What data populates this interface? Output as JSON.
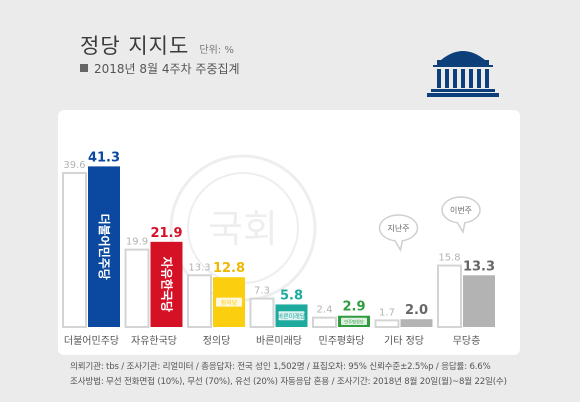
{
  "header": {
    "title": "정당 지지도",
    "unit": "단위: %",
    "subtitle": "2018년 8월 4주차 주중집계"
  },
  "chart_data": {
    "type": "bar",
    "title": "정당 지지도",
    "categories": [
      "더불어민주당",
      "자유한국당",
      "정의당",
      "바른미래당",
      "민주평화당",
      "기타 정당",
      "무당층"
    ],
    "series": [
      {
        "values": [
          39.6,
          19.9,
          13.3,
          7.3,
          2.4,
          1.7,
          15.8
        ]
      },
      {
        "values": [
          41.3,
          21.9,
          12.8,
          5.8,
          2.9,
          2.0,
          13.3
        ]
      }
    ],
    "ylim": [
      0,
      45
    ],
    "colors": {
      "prev": "#ffffff",
      "prev_border": "#d4d4d4",
      "prev_label": "#b3b3b3",
      "current": [
        "#0b48a0",
        "#d51126",
        "#fbcf10",
        "#1faa9e",
        "#2e9c3f",
        "#b3b3b3",
        "#b3b3b3"
      ],
      "current_label": [
        "#0b48a0",
        "#d51126",
        "#f0b800",
        "#1faa9e",
        "#2e9c3f",
        "#666666",
        "#666666"
      ]
    },
    "bar_logos": [
      "더불어민주당",
      "자유한국당",
      "정의당",
      "바른미래당",
      "민주평화당",
      "",
      ""
    ],
    "bubbles": [
      {
        "category": "기타 정당",
        "text": "지난주"
      },
      {
        "category": "무당층",
        "text": "이번주"
      }
    ],
    "watermark": "국회"
  },
  "footer": {
    "line1": "의뢰기관: tbs / 조사기관: 리얼미터 / 총응답자: 전국 성인 1,502명 / 표집오차: 95% 신뢰수준±2.5%p / 응답률: 6.6%",
    "line2": "조사방법: 무선 전화면접 (10%), 무선 (70%), 유선 (20%) 자동응답 혼용 / 조사기간: 2018년 8월 20일(월)~8월 22일(수)"
  }
}
